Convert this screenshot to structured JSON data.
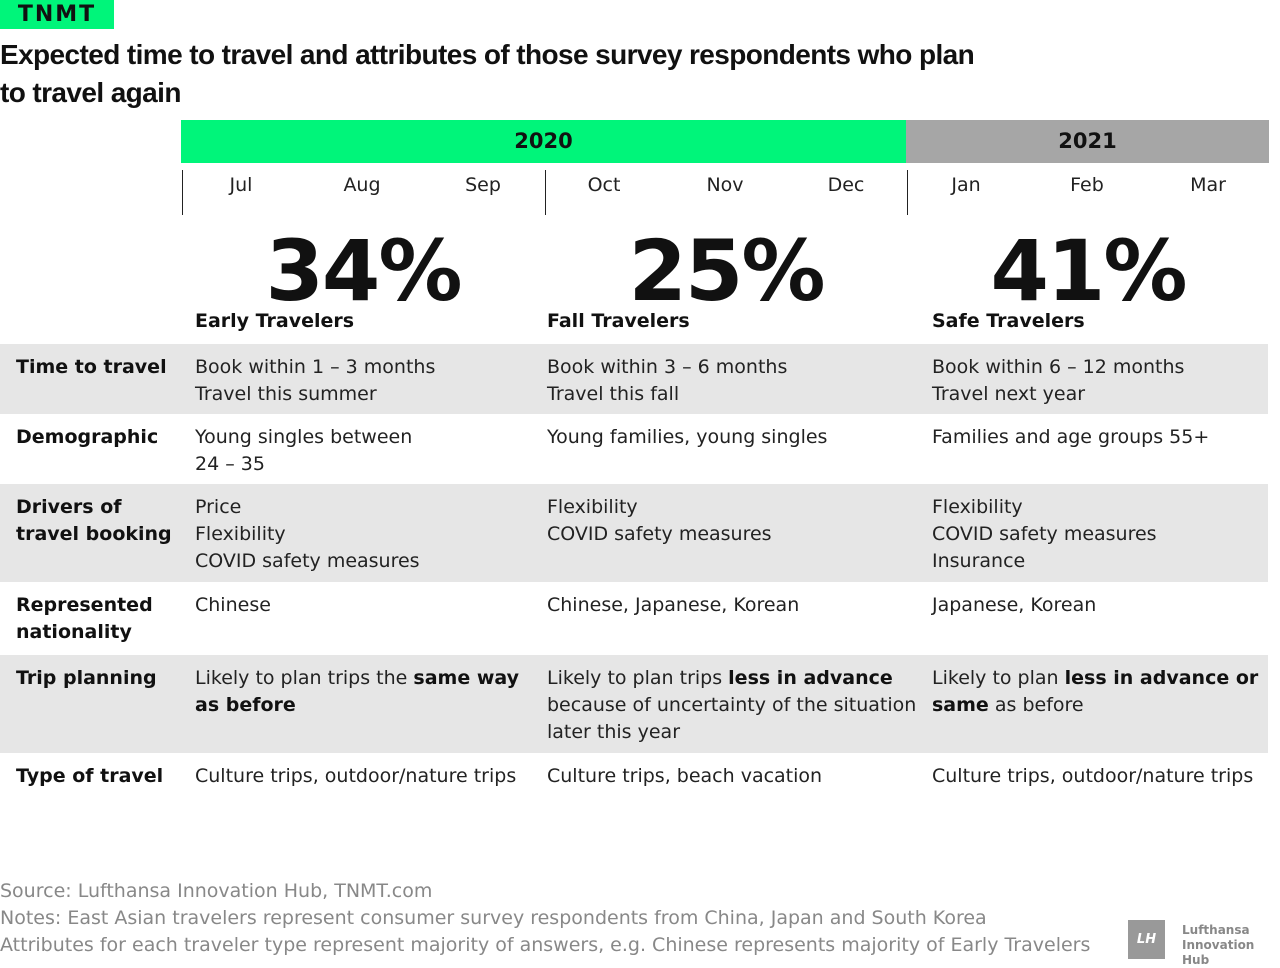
{
  "logo": "TNMT",
  "title": "Expected time to travel and attributes of those survey respondents who plan to travel again",
  "years": [
    "2020",
    "2021"
  ],
  "months": [
    "Jul",
    "Aug",
    "Sep",
    "Oct",
    "Nov",
    "Dec",
    "Jan",
    "Feb",
    "Mar"
  ],
  "segments": [
    {
      "percent": "34%",
      "name": "Early Travelers"
    },
    {
      "percent": "25%",
      "name": "Fall Travelers"
    },
    {
      "percent": "41%",
      "name": "Safe Travelers"
    }
  ],
  "rows": [
    {
      "label": "Time to travel",
      "cells": [
        [
          {
            "t": "Book within 1 – 3 months\nTravel this summer"
          }
        ],
        [
          {
            "t": "Book within 3 – 6 months\nTravel this fall"
          }
        ],
        [
          {
            "t": "Book within 6 – 12 months\nTravel next year"
          }
        ]
      ]
    },
    {
      "label": "Demographic",
      "cells": [
        [
          {
            "t": "Young singles between\n24 – 35"
          }
        ],
        [
          {
            "t": "Young families, young singles"
          }
        ],
        [
          {
            "t": "Families and age groups 55+"
          }
        ]
      ]
    },
    {
      "label": "Drivers of\ntravel booking",
      "cells": [
        [
          {
            "t": "Price\nFlexibility\nCOVID safety measures"
          }
        ],
        [
          {
            "t": "Flexibility\nCOVID safety measures"
          }
        ],
        [
          {
            "t": "Flexibility\nCOVID safety measures\nInsurance"
          }
        ]
      ]
    },
    {
      "label": "Represented\nnationality",
      "cells": [
        [
          {
            "t": "Chinese"
          }
        ],
        [
          {
            "t": "Chinese, Japanese, Korean"
          }
        ],
        [
          {
            "t": "Japanese, Korean"
          }
        ]
      ]
    },
    {
      "label": "Trip planning",
      "cells": [
        [
          {
            "t": "Likely to plan trips the "
          },
          {
            "t": "same way as before",
            "b": true
          }
        ],
        [
          {
            "t": "Likely to plan trips "
          },
          {
            "t": "less in advance",
            "b": true
          },
          {
            "t": " because of uncertainty of the situation later this year"
          }
        ],
        [
          {
            "t": "Likely to plan "
          },
          {
            "t": "less in advance or same",
            "b": true
          },
          {
            "t": " as before"
          }
        ]
      ]
    },
    {
      "label": "Type of travel",
      "cells": [
        [
          {
            "t": "Culture trips, outdoor/nature trips"
          }
        ],
        [
          {
            "t": "Culture trips, beach vacation"
          }
        ],
        [
          {
            "t": "Culture trips, outdoor/nature trips"
          }
        ]
      ]
    }
  ],
  "footer": {
    "source": "Source: Lufthansa Innovation Hub, TNMT.com",
    "notes": "Notes: East Asian travelers represent consumer survey respondents from China, Japan and South Korea",
    "attributes": "Attributes for each traveler type represent majority of answers, e.g. Chinese represents majority of Early Travelers"
  },
  "brand": {
    "mark": "LH",
    "name": "Lufthansa\nInnovation Hub"
  },
  "colors": {
    "accent": "#00f57a",
    "gray": "#a6a6a6",
    "row": "#e6e6e6"
  }
}
